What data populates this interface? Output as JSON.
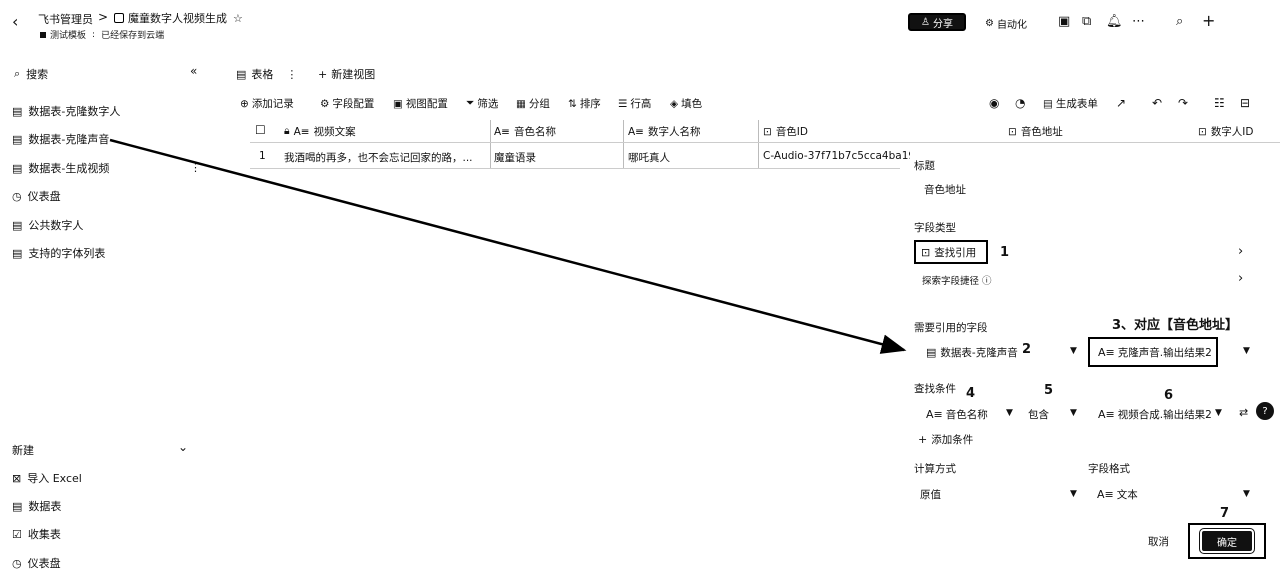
{
  "header": {
    "back_icon": "chevron-left-icon",
    "app_name": "飞书管理员",
    "separator": ">",
    "doc_title": "魔童数字人视频生成",
    "star_icon": "star-icon",
    "sub_tag": "测试模板",
    "save_status": "已经保存到云端",
    "share_label": "分享",
    "automation_label": "自动化"
  },
  "sidebar": {
    "search_label": "搜索",
    "items": [
      {
        "label": "数据表-克隆数字人"
      },
      {
        "label": "数据表-克隆声音"
      },
      {
        "label": "数据表-生成视频"
      },
      {
        "label": "仪表盘"
      },
      {
        "label": "公共数字人"
      },
      {
        "label": "支持的字体列表"
      }
    ],
    "new_label": "新建",
    "new_items": [
      {
        "label": "导入 Excel"
      },
      {
        "label": "数据表"
      },
      {
        "label": "收集表"
      },
      {
        "label": "仪表盘"
      }
    ]
  },
  "view_tabs": {
    "table_label": "表格",
    "new_view_label": "新建视图"
  },
  "toolbar": {
    "add_record": "添加记录",
    "field_config": "字段配置",
    "view_config": "视图配置",
    "filter": "筛选",
    "group": "分组",
    "sort": "排序",
    "row_height": "行高",
    "fill_color": "填色",
    "generate_form": "生成表单"
  },
  "table": {
    "columns": [
      "视频文案",
      "音色名称",
      "数字人名称",
      "音色ID",
      "音色地址",
      "数字人ID"
    ],
    "rows": [
      {
        "index": "1",
        "cells": [
          "我酒喝的再多，也不会忘记回家的路，...",
          "魔童语录",
          "哪吒真人",
          "C-Audio-37f71b7c5cca4ba1992",
          "",
          ""
        ]
      }
    ]
  },
  "field_panel": {
    "title_label": "标题",
    "title_value": "音色地址",
    "field_type_label": "字段类型",
    "field_type_value": "查找引用",
    "explore_label": "探索字段捷径",
    "ref_field_label": "需要引用的字段",
    "ref_table_value": "数据表-克隆声音",
    "ref_field_value": "克隆声音.输出结果2",
    "condition_label": "查找条件",
    "cond_field": "音色名称",
    "cond_op": "包含",
    "cond_value": "视频合成.输出结果2",
    "add_condition": "添加条件",
    "calc_label": "计算方式",
    "calc_value": "原值",
    "format_label": "字段格式",
    "format_value": "文本",
    "cancel_label": "取消",
    "confirm_label": "确定"
  },
  "annotations": {
    "n1": "1",
    "n2": "2",
    "n3": "3、对应【音色地址】",
    "n4": "4",
    "n5": "5",
    "n6": "6",
    "n7": "7"
  }
}
